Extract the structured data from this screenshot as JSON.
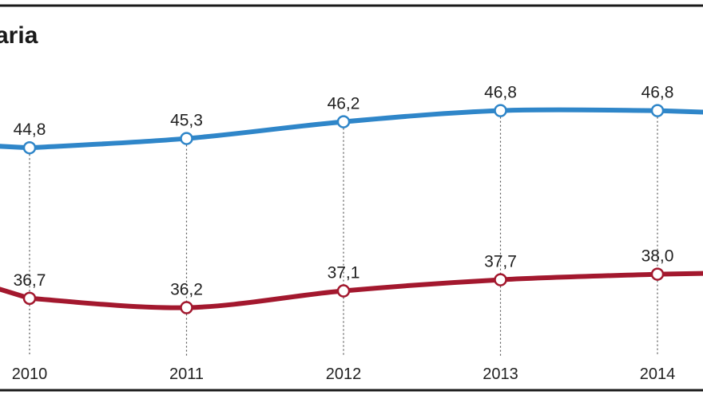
{
  "title": "aria",
  "colors": {
    "series_top": "#2f86c9",
    "series_bottom": "#a3182e",
    "frame": "#1a1a1a",
    "guide": "#555555"
  },
  "chart_data": {
    "type": "line",
    "x": [
      "2010",
      "2011",
      "2012",
      "2013",
      "2014"
    ],
    "series": [
      {
        "values": [
          44.8,
          45.3,
          46.2,
          46.8,
          46.8
        ],
        "labels": [
          "44,8",
          "45,3",
          "46,2",
          "46,8",
          "46,8"
        ]
      },
      {
        "values": [
          36.7,
          36.2,
          37.1,
          37.7,
          38.0
        ],
        "labels": [
          "36,7",
          "36,2",
          "37,1",
          "37,7",
          "38,0"
        ]
      }
    ],
    "grid": false,
    "legend": "none"
  }
}
